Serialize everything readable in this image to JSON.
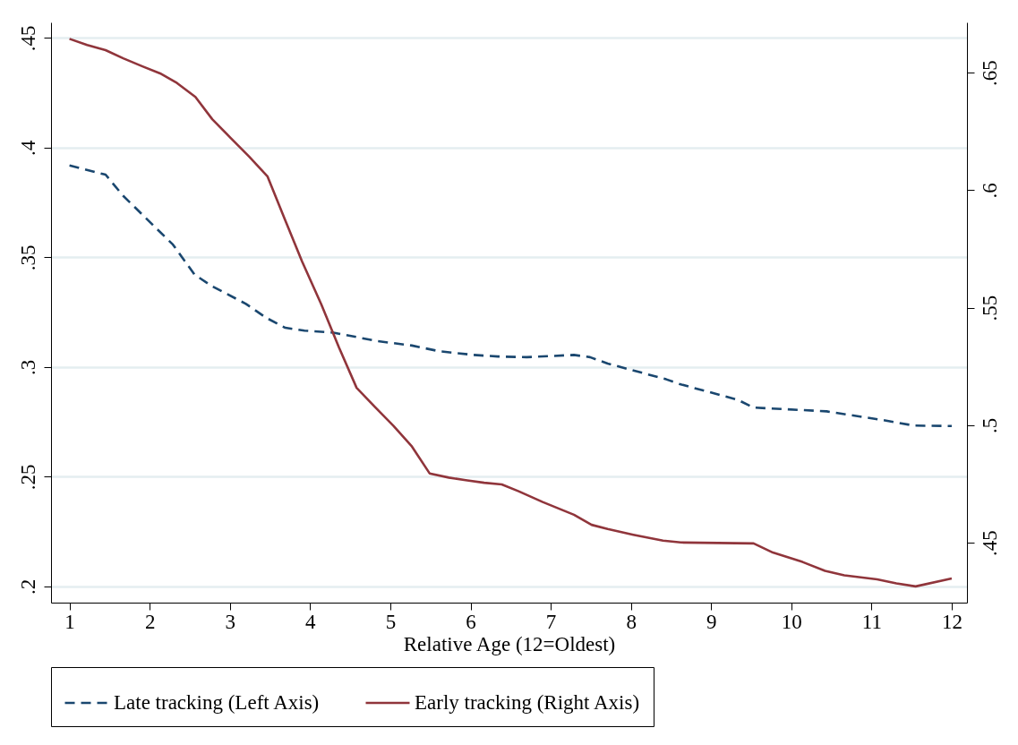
{
  "chart_data": {
    "type": "line",
    "xlabel": "Relative Age (12=Oldest)",
    "xlim": [
      0.77,
      12.19
    ],
    "xticks": [
      1,
      2,
      3,
      4,
      5,
      6,
      7,
      8,
      9,
      10,
      11,
      12
    ],
    "ylim": [
      0.1926,
      0.4571
    ],
    "yticks": [
      {
        "value": 0.2,
        "label": ".2"
      },
      {
        "value": 0.25,
        "label": ".25"
      },
      {
        "value": 0.3,
        "label": ".3"
      },
      {
        "value": 0.35,
        "label": ".35"
      },
      {
        "value": 0.4,
        "label": ".4"
      },
      {
        "value": 0.45,
        "label": ".45"
      }
    ],
    "y2lim": [
      0.4245,
      0.6714
    ],
    "y2ticks": [
      {
        "value": 0.45,
        "label": ".45"
      },
      {
        "value": 0.5,
        "label": ".5"
      },
      {
        "value": 0.55,
        "label": ".55"
      },
      {
        "value": 0.6,
        "label": ".6"
      },
      {
        "value": 0.65,
        "label": ".65"
      }
    ],
    "grid": "y",
    "legend": "bottom",
    "series": [
      {
        "name": "Late tracking (Left Axis)",
        "color": "#1a476f",
        "line_style": "dashed",
        "axis": "y",
        "x": [
          1.0,
          1.45,
          1.67,
          1.91,
          2.29,
          2.56,
          2.77,
          3.2,
          3.45,
          3.69,
          3.93,
          4.29,
          4.6,
          4.84,
          5.27,
          5.61,
          6.04,
          6.34,
          6.7,
          7.29,
          7.49,
          7.71,
          8.44,
          8.6,
          9.33,
          9.53,
          10.44,
          11.11,
          11.53,
          12.0
        ],
        "values": [
          0.3919,
          0.3877,
          0.378,
          0.3694,
          0.3558,
          0.3421,
          0.337,
          0.3288,
          0.3225,
          0.3179,
          0.3166,
          0.3157,
          0.3135,
          0.3118,
          0.3098,
          0.3072,
          0.3055,
          0.3048,
          0.3045,
          0.3055,
          0.3045,
          0.3016,
          0.2944,
          0.2923,
          0.2851,
          0.2815,
          0.2798,
          0.276,
          0.2733,
          0.2731
        ]
      },
      {
        "name": "Early tracking (Right Axis)",
        "color": "#90353b",
        "line_style": "solid",
        "axis": "y2",
        "x": [
          1.0,
          1.22,
          1.45,
          1.67,
          1.91,
          2.13,
          2.34,
          2.57,
          2.78,
          3.01,
          3.24,
          3.47,
          3.69,
          3.9,
          4.14,
          4.36,
          4.58,
          4.81,
          5.04,
          5.27,
          5.49,
          5.73,
          5.94,
          6.17,
          6.39,
          6.6,
          6.9,
          7.29,
          7.51,
          7.71,
          8.03,
          8.4,
          8.62,
          9.53,
          9.77,
          10.14,
          10.42,
          10.66,
          11.07,
          11.31,
          11.55,
          12.0
        ],
        "values": [
          0.6644,
          0.6618,
          0.6596,
          0.6561,
          0.6527,
          0.6497,
          0.6456,
          0.6397,
          0.6302,
          0.6222,
          0.6143,
          0.6058,
          0.5872,
          0.5697,
          0.5514,
          0.5331,
          0.5159,
          0.5077,
          0.4997,
          0.4909,
          0.4795,
          0.4777,
          0.4766,
          0.4755,
          0.4748,
          0.4719,
          0.4673,
          0.4619,
          0.4576,
          0.4558,
          0.4534,
          0.4509,
          0.4501,
          0.4497,
          0.4458,
          0.4418,
          0.438,
          0.4361,
          0.4344,
          0.4327,
          0.4314,
          0.4348
        ]
      }
    ]
  }
}
